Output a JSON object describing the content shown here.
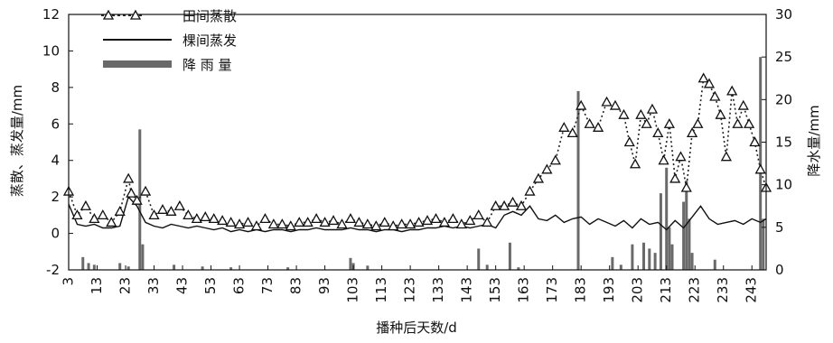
{
  "chart_data": {
    "type": "line",
    "xlabel": "播种后天数/d",
    "ylabel_left": "蒸散、蒸发量/mm",
    "ylabel_right": "降水量/mm",
    "x_ticks": [
      3,
      13,
      23,
      33,
      43,
      53,
      63,
      73,
      83,
      93,
      103,
      113,
      123,
      133,
      143,
      153,
      163,
      173,
      183,
      193,
      203,
      213,
      223,
      233,
      243
    ],
    "y_left_ticks": [
      -2,
      0,
      2,
      4,
      6,
      8,
      10,
      12
    ],
    "y_right_ticks": [
      0,
      5,
      10,
      15,
      20,
      25,
      30
    ],
    "xlim": [
      3,
      248
    ],
    "ylim_left": [
      -2,
      12
    ],
    "ylim_right": [
      0,
      30
    ],
    "legend_position": "top-left",
    "series": [
      {
        "name": "田间蒸散",
        "style": "dotted-triangle",
        "axis": "left",
        "x": [
          3,
          6,
          9,
          12,
          15,
          18,
          21,
          24,
          25,
          27,
          30,
          33,
          36,
          39,
          42,
          45,
          48,
          51,
          54,
          57,
          60,
          63,
          66,
          69,
          72,
          75,
          78,
          81,
          84,
          87,
          90,
          93,
          96,
          99,
          102,
          105,
          108,
          111,
          114,
          117,
          120,
          123,
          126,
          129,
          132,
          135,
          138,
          141,
          144,
          147,
          150,
          153,
          156,
          159,
          162,
          165,
          168,
          171,
          174,
          177,
          180,
          183,
          186,
          189,
          192,
          195,
          198,
          200,
          202,
          204,
          206,
          208,
          210,
          212,
          214,
          216,
          218,
          220,
          222,
          224,
          226,
          228,
          230,
          232,
          234,
          236,
          238,
          240,
          242,
          244,
          246,
          248
        ],
        "y": [
          2.3,
          1.0,
          1.5,
          0.8,
          1.0,
          0.6,
          1.2,
          3.0,
          2.2,
          1.8,
          2.3,
          1.0,
          1.3,
          1.2,
          1.5,
          1.0,
          0.8,
          0.9,
          0.8,
          0.7,
          0.6,
          0.5,
          0.6,
          0.4,
          0.8,
          0.5,
          0.5,
          0.4,
          0.6,
          0.6,
          0.8,
          0.6,
          0.7,
          0.5,
          0.8,
          0.6,
          0.5,
          0.4,
          0.6,
          0.4,
          0.5,
          0.5,
          0.6,
          0.7,
          0.8,
          0.6,
          0.8,
          0.5,
          0.7,
          1.0,
          0.6,
          1.5,
          1.5,
          1.7,
          1.5,
          2.3,
          3.0,
          3.5,
          4.0,
          5.8,
          5.5,
          7.0,
          6.0,
          5.8,
          7.2,
          7.0,
          6.5,
          5.0,
          3.8,
          6.5,
          6.0,
          6.8,
          5.5,
          4.0,
          6.0,
          3.0,
          4.2,
          2.5,
          5.5,
          6.0,
          8.5,
          8.2,
          7.5,
          6.5,
          4.2,
          7.8,
          6.0,
          7.0,
          6.0,
          5.0,
          3.5,
          2.5
        ]
      },
      {
        "name": "棵间蒸发",
        "style": "solid",
        "axis": "left",
        "x": [
          3,
          6,
          9,
          12,
          15,
          18,
          21,
          24,
          27,
          30,
          33,
          36,
          39,
          42,
          45,
          48,
          51,
          54,
          57,
          60,
          63,
          66,
          69,
          72,
          75,
          78,
          81,
          84,
          87,
          90,
          93,
          96,
          99,
          102,
          105,
          108,
          111,
          114,
          117,
          120,
          123,
          126,
          129,
          132,
          135,
          138,
          141,
          144,
          147,
          150,
          153,
          156,
          159,
          162,
          165,
          168,
          171,
          174,
          177,
          180,
          183,
          186,
          189,
          192,
          195,
          198,
          201,
          204,
          207,
          210,
          213,
          216,
          219,
          222,
          225,
          228,
          231,
          234,
          237,
          240,
          243,
          246,
          248
        ],
        "y": [
          1.6,
          0.5,
          0.4,
          0.5,
          0.3,
          0.3,
          0.4,
          2.0,
          1.5,
          0.6,
          0.4,
          0.3,
          0.5,
          0.4,
          0.3,
          0.4,
          0.3,
          0.2,
          0.3,
          0.1,
          0.2,
          0.1,
          0.2,
          0.1,
          0.2,
          0.2,
          0.1,
          0.2,
          0.2,
          0.3,
          0.2,
          0.2,
          0.2,
          0.3,
          0.2,
          0.2,
          0.1,
          0.2,
          0.2,
          0.1,
          0.2,
          0.2,
          0.3,
          0.3,
          0.4,
          0.3,
          0.4,
          0.3,
          0.4,
          0.5,
          0.3,
          1.0,
          1.2,
          1.0,
          1.5,
          0.8,
          0.7,
          1.0,
          0.6,
          0.8,
          0.9,
          0.5,
          0.8,
          0.6,
          0.4,
          0.7,
          0.3,
          0.8,
          0.5,
          0.6,
          0.2,
          0.7,
          0.3,
          0.9,
          1.5,
          0.8,
          0.5,
          0.6,
          0.7,
          0.5,
          0.8,
          0.6,
          0.8
        ]
      },
      {
        "name": "降 雨 量",
        "style": "bar",
        "axis": "right",
        "x": [
          8,
          10,
          12,
          21,
          24,
          28,
          29,
          40,
          50,
          60,
          80,
          102,
          103,
          108,
          147,
          150,
          158,
          161,
          182,
          194,
          197,
          201,
          205,
          207,
          209,
          211,
          213,
          214,
          215,
          219,
          220,
          221,
          222,
          230,
          246,
          247
        ],
        "y": [
          1.5,
          0.8,
          0.6,
          0.8,
          0.4,
          16.5,
          3.0,
          0.6,
          0.4,
          0.3,
          0.3,
          1.4,
          0.8,
          0.5,
          2.5,
          0.6,
          3.2,
          0.3,
          21.0,
          1.5,
          0.6,
          3.0,
          3.2,
          2.5,
          2.0,
          9.0,
          12.0,
          5.0,
          3.0,
          8.0,
          10.5,
          6.0,
          2.0,
          1.2,
          25.0,
          6.0
        ]
      }
    ]
  }
}
